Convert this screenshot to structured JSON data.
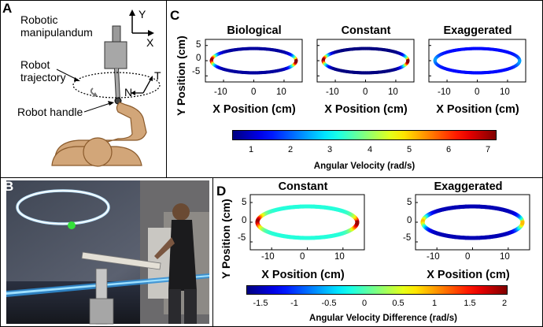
{
  "panels": {
    "A": {
      "letter": "A",
      "labels": {
        "manipulandum": "Robotic\nmanipulandum",
        "trajectory": "Robot\ntrajectory",
        "handle": "Robot handle",
        "axis_y": "Y",
        "axis_x": "X",
        "axis_t": "T",
        "axis_n": "N"
      }
    },
    "B": {
      "letter": "B"
    },
    "C": {
      "letter": "C",
      "ylabel": "Y Position (cm)",
      "xlabel": "X Position (cm)",
      "subplots": [
        {
          "title": "Biological"
        },
        {
          "title": "Constant"
        },
        {
          "title": "Exaggerated"
        }
      ],
      "xticks": [
        "-10",
        "0",
        "10"
      ],
      "yticks": [
        "5",
        "0",
        "-5"
      ],
      "colorbar": {
        "label": "Angular Velocity (rad/s)",
        "ticks": [
          "1",
          "2",
          "3",
          "4",
          "5",
          "6",
          "7"
        ],
        "range": [
          0.3,
          7
        ]
      }
    },
    "D": {
      "letter": "D",
      "ylabel": "Y Position (cm)",
      "xlabel": "X Position (cm)",
      "subplots": [
        {
          "title": "Constant"
        },
        {
          "title": "Exaggerated"
        }
      ],
      "xticks": [
        "-10",
        "0",
        "10"
      ],
      "yticks": [
        "5",
        "0",
        "-5"
      ],
      "colorbar": {
        "label": "Angular Velocity Difference (rad/s)",
        "ticks": [
          "-1.5",
          "-1",
          "-0.5",
          "0",
          "0.5",
          "1",
          "1.5",
          "2"
        ],
        "range": [
          -1.8,
          2.1
        ]
      }
    }
  },
  "chart_data": [
    {
      "type": "scatter",
      "panel": "C",
      "title": "Biological",
      "xlabel": "X Position (cm)",
      "ylabel": "Y Position (cm)",
      "xlim": [
        -16,
        16
      ],
      "ylim": [
        -7,
        7
      ],
      "series": [
        {
          "shape": "ellipse",
          "rx": 14,
          "ry": 4,
          "color_metric": "angular velocity",
          "min": 0.5,
          "max": 7
        }
      ]
    },
    {
      "type": "scatter",
      "panel": "C",
      "title": "Constant",
      "xlabel": "X Position (cm)",
      "ylabel": "Y Position (cm)",
      "xlim": [
        -16,
        16
      ],
      "ylim": [
        -7,
        7
      ],
      "series": [
        {
          "shape": "ellipse",
          "rx": 14,
          "ry": 4,
          "color_metric": "angular velocity",
          "min": 0.3,
          "max": 7
        }
      ]
    },
    {
      "type": "scatter",
      "panel": "C",
      "title": "Exaggerated",
      "xlabel": "X Position (cm)",
      "ylabel": "Y Position (cm)",
      "xlim": [
        -16,
        16
      ],
      "ylim": [
        -7,
        7
      ],
      "series": [
        {
          "shape": "ellipse",
          "rx": 14,
          "ry": 4,
          "color_metric": "angular velocity",
          "min": 1.2,
          "max": 2.2
        }
      ]
    },
    {
      "type": "scatter",
      "panel": "D",
      "title": "Constant",
      "xlabel": "X Position (cm)",
      "ylabel": "Y Position (cm)",
      "xlim": [
        -16,
        16
      ],
      "ylim": [
        -7,
        7
      ],
      "series": [
        {
          "shape": "ellipse",
          "rx": 14,
          "ry": 4,
          "color_metric": "angular velocity difference",
          "min": -0.2,
          "max": 2
        }
      ]
    },
    {
      "type": "scatter",
      "panel": "D",
      "title": "Exaggerated",
      "xlabel": "X Position (cm)",
      "ylabel": "Y Position (cm)",
      "xlim": [
        -16,
        16
      ],
      "ylim": [
        -7,
        7
      ],
      "series": [
        {
          "shape": "ellipse",
          "rx": 14,
          "ry": 4,
          "color_metric": "angular velocity difference",
          "min": -1.6,
          "max": 0.9
        }
      ]
    }
  ],
  "colors": {
    "skin": "#d2a679",
    "skin_stroke": "#8a5a2b",
    "device": "#a7a7a7",
    "marker": "#35e03a"
  }
}
